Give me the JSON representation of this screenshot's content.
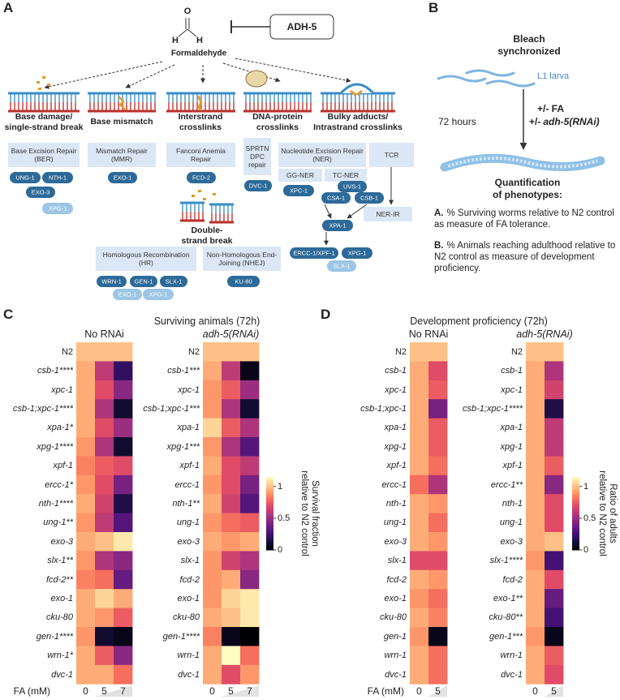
{
  "panel_a": {
    "label": "A",
    "inhibitor": "ADH-5",
    "molecule": {
      "atoms": [
        "O",
        "H",
        "H"
      ],
      "name": "Formaldehyde"
    },
    "lesions": [
      {
        "title": [
          "Base damage/",
          "single-strand break"
        ],
        "pathway": "Base Excision Repair (BER)",
        "proteins": [
          "UNG-1",
          "NTH-1",
          "EXO-3",
          "XPG-1"
        ]
      },
      {
        "title": [
          "Base mismatch"
        ],
        "pathway": "Mismatch Repair (MMR)",
        "proteins": [
          "EXO-1"
        ]
      },
      {
        "title": [
          "Interstrand",
          "crosslinks"
        ],
        "pathway": "Fanconi Anemia Repair",
        "proteins": [
          "FCD-2"
        ]
      },
      {
        "title": [
          "DNA-protein",
          "crosslinks"
        ],
        "pathway": "SPRTN DPC repair",
        "proteins": [
          "DVC-1"
        ]
      },
      {
        "title": [
          "Bulky adducts/",
          "Intrastrand crosslinks"
        ],
        "pathway": "Nucleotide Excision Repair (NER)",
        "subpathways": [
          "GG-NER",
          "TC-NER"
        ],
        "proteins": [
          "XPC-1",
          "UVS-1",
          "CSA-1",
          "CSB-1",
          "XPA-1",
          "ERCC-1/XPF-1",
          "XPG-1",
          "SLX-1"
        ],
        "tcr": "TCR",
        "tcr_product": "NER-IR"
      }
    ],
    "dsb": {
      "title": [
        "Double-",
        "strand break"
      ],
      "pathways": [
        {
          "name": "Homologous Recombination (HR)",
          "proteins": [
            "WRN-1",
            "GEN-1",
            "SLX-1",
            "EXO-1",
            "XPG-1"
          ]
        },
        {
          "name": "Non-Homologous End-Joining (NHEJ)",
          "proteins": [
            "KU-80"
          ]
        }
      ]
    }
  },
  "panel_b": {
    "label": "B",
    "start": [
      "Bleach",
      "synchronized"
    ],
    "stage": "L1 larva",
    "duration": "72 hours",
    "treatment": "+/- FA",
    "rnai": {
      "prefix": "+/-",
      "name": "adh-5(RNAi)"
    },
    "readout": [
      "Quantification",
      "of phenotypes:"
    ],
    "measures": [
      {
        "key": "A.",
        "text": "% Surviving worms relative to N2 control as measure of FA tolerance."
      },
      {
        "key": "B.",
        "text": "% Animals reaching adulthood relative to N2 control as measure of development proficiency."
      }
    ]
  },
  "chart_data": [
    {
      "type": "heatmap",
      "panel": "C",
      "title": "Surviving animals (72h)",
      "xlabel": "FA (mM)",
      "columns": [
        "0",
        "5",
        "7"
      ],
      "colormap": "magma",
      "colorbar": {
        "label": [
          "Survival fraction",
          "relative to N2 control"
        ],
        "clim": [
          0,
          1.15
        ],
        "ticks": [
          0,
          0.5,
          1
        ]
      },
      "subplots": [
        {
          "title": "No RNAi",
          "categories": [
            "N2",
            "csb-1****",
            "xpc-1",
            "csb-1;xpc-1****",
            "xpa-1*",
            "xpg-1****",
            "xpf-1",
            "ercc-1*",
            "nth-1****",
            "ung-1**",
            "exo-3",
            "slx-1**",
            "fcd-2**",
            "exo-1",
            "cku-80",
            "gen-1****",
            "wrn-1*",
            "dvc-1"
          ],
          "values": [
            [
              1,
              1,
              1
            ],
            [
              0.95,
              0.6,
              0.2
            ],
            [
              0.95,
              0.7,
              0.45
            ],
            [
              0.95,
              0.55,
              0.1
            ],
            [
              0.95,
              0.7,
              0.5
            ],
            [
              0.9,
              0.55,
              0.1
            ],
            [
              0.85,
              0.75,
              0.7
            ],
            [
              0.9,
              0.7,
              0.4
            ],
            [
              0.95,
              0.65,
              0.15
            ],
            [
              0.9,
              0.6,
              0.3
            ],
            [
              0.95,
              1.0,
              1.1
            ],
            [
              0.9,
              0.55,
              0.45
            ],
            [
              0.85,
              0.8,
              0.35
            ],
            [
              0.95,
              1.05,
              0.95
            ],
            [
              0.95,
              0.9,
              0.75
            ],
            [
              0.9,
              0.1,
              0.05
            ],
            [
              0.95,
              0.75,
              0.45
            ],
            [
              0.95,
              0.95,
              0.8
            ]
          ]
        },
        {
          "title": "adh-5(RNAi)",
          "categories": [
            "N2",
            "csb-1***",
            "xpc-1",
            "csb-1;xpc-1***",
            "xpa-1",
            "xpg-1***",
            "xpf-1",
            "ercc-1",
            "nth-1**",
            "ung-1",
            "exo-3",
            "slx-1",
            "fcd-2",
            "exo-1",
            "cku-80",
            "gen-1****",
            "wrn-1",
            "dvc-1"
          ],
          "values": [
            [
              1,
              1,
              1
            ],
            [
              0.95,
              0.6,
              0.05
            ],
            [
              0.9,
              0.75,
              0.5
            ],
            [
              0.9,
              0.55,
              0.1
            ],
            [
              1.05,
              0.75,
              0.55
            ],
            [
              0.9,
              0.55,
              0.3
            ],
            [
              0.95,
              0.7,
              0.6
            ],
            [
              0.9,
              0.7,
              0.4
            ],
            [
              0.95,
              0.65,
              0.3
            ],
            [
              0.9,
              0.8,
              0.75
            ],
            [
              0.95,
              0.9,
              0.95
            ],
            [
              0.9,
              0.65,
              0.55
            ],
            [
              0.9,
              0.95,
              0.45
            ],
            [
              0.9,
              1.05,
              1.1
            ],
            [
              0.95,
              1.0,
              1.1
            ],
            [
              0.85,
              0.05,
              0
            ],
            [
              0.95,
              1.15,
              0.8
            ],
            [
              0.95,
              0.7,
              0.9
            ]
          ]
        }
      ]
    },
    {
      "type": "heatmap",
      "panel": "D",
      "title": "Development proficiency (72h)",
      "xlabel": "FA (mM)",
      "columns": [
        "0",
        "5"
      ],
      "colormap": "magma",
      "colorbar": {
        "label": [
          "Ratio of adults",
          "relative to N2 control"
        ],
        "clim": [
          0,
          1.15
        ],
        "ticks": [
          0,
          0.5,
          1
        ]
      },
      "subplots": [
        {
          "title": "No RNAi",
          "categories": [
            "N2",
            "csb-1",
            "xpc-1",
            "csb-1;xpc-1",
            "xpa-1",
            "xpg-1",
            "xpf-1",
            "ercc-1",
            "nth-1",
            "ung-1",
            "exo-3",
            "slx-1",
            "fcd-2",
            "exo-1",
            "cku-80",
            "gen-1",
            "wrn-1",
            "dvc-1"
          ],
          "values": [
            [
              1,
              1
            ],
            [
              0.95,
              0.7
            ],
            [
              0.95,
              0.75
            ],
            [
              0.95,
              0.4
            ],
            [
              0.95,
              0.75
            ],
            [
              0.95,
              0.75
            ],
            [
              0.95,
              0.8
            ],
            [
              0.8,
              0.55
            ],
            [
              0.95,
              0.9
            ],
            [
              0.95,
              0.8
            ],
            [
              0.95,
              0.9
            ],
            [
              0.7,
              0.7
            ],
            [
              0.95,
              0.9
            ],
            [
              0.9,
              0.8
            ],
            [
              0.95,
              0.85
            ],
            [
              0.9,
              0.05
            ],
            [
              0.95,
              0.8
            ],
            [
              0.95,
              0.8
            ]
          ]
        },
        {
          "title": "adh-5(RNAi)",
          "categories": [
            "N2",
            "csb-1",
            "xpc-1",
            "csb-1;xpc-1****",
            "xpa-1",
            "xpg-1",
            "xpf-1",
            "ercc-1**",
            "nth-1",
            "ung-1",
            "exo-3",
            "slx-1****",
            "fcd-2",
            "exo-1**",
            "cku-80**",
            "gen-1***",
            "wrn-1",
            "dvc-1"
          ],
          "values": [
            [
              1,
              1
            ],
            [
              0.95,
              0.55
            ],
            [
              0.95,
              0.65
            ],
            [
              0.95,
              0.15
            ],
            [
              0.95,
              0.6
            ],
            [
              0.95,
              0.6
            ],
            [
              0.95,
              0.75
            ],
            [
              0.95,
              0.45
            ],
            [
              0.95,
              0.7
            ],
            [
              0.95,
              0.7
            ],
            [
              0.95,
              1.0
            ],
            [
              0.9,
              0.25
            ],
            [
              0.95,
              0.7
            ],
            [
              0.95,
              0.35
            ],
            [
              0.95,
              0.25
            ],
            [
              0.9,
              0.05
            ],
            [
              0.95,
              0.75
            ],
            [
              0.95,
              0.7
            ]
          ]
        }
      ]
    }
  ]
}
